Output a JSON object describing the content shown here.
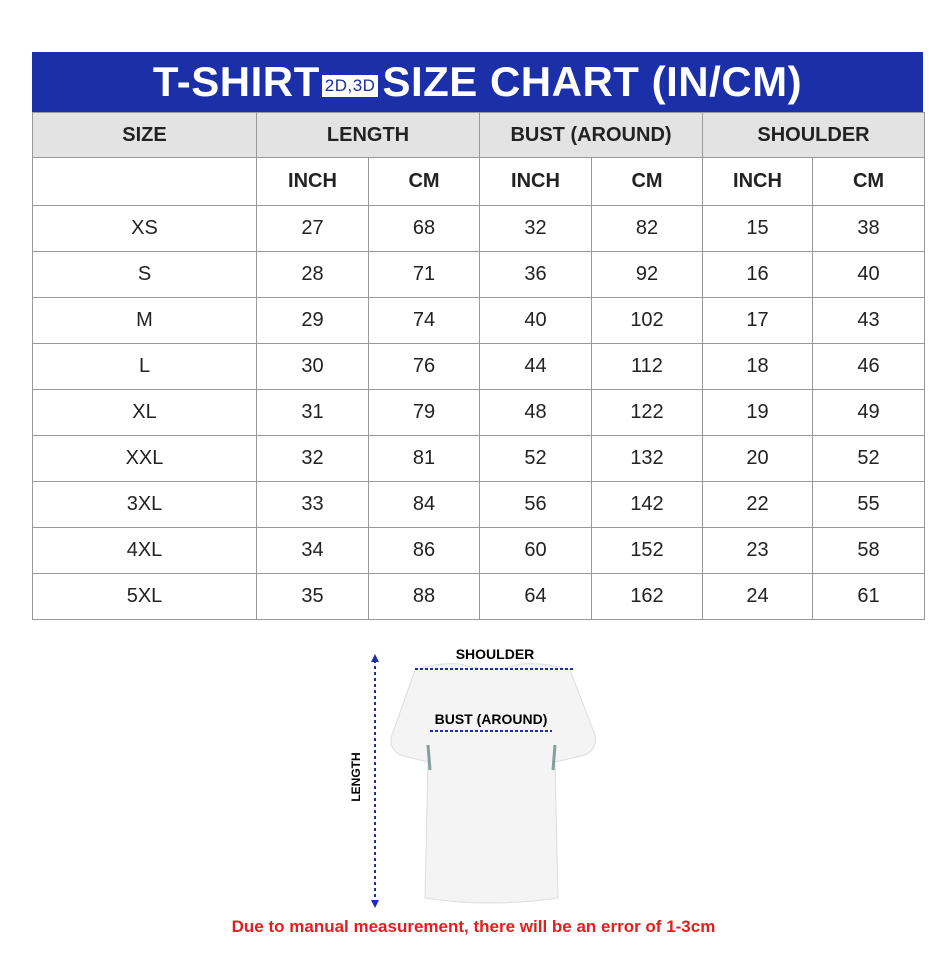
{
  "title": {
    "before": "T-SHIRT",
    "tag": "2D,3D",
    "after": "SIZE CHART (IN/CM)"
  },
  "headers": {
    "size": "SIZE",
    "length": "LENGTH",
    "bust": "BUST (AROUND)",
    "shoulder": "SHOULDER",
    "inch": "INCH",
    "cm": "CM"
  },
  "rows": [
    [
      "XS",
      "27",
      "68",
      "32",
      "82",
      "15",
      "38"
    ],
    [
      "S",
      "28",
      "71",
      "36",
      "92",
      "16",
      "40"
    ],
    [
      "M",
      "29",
      "74",
      "40",
      "102",
      "17",
      "43"
    ],
    [
      "L",
      "30",
      "76",
      "44",
      "112",
      "18",
      "46"
    ],
    [
      "XL",
      "31",
      "79",
      "48",
      "122",
      "19",
      "49"
    ],
    [
      "XXL",
      "32",
      "81",
      "52",
      "132",
      "20",
      "52"
    ],
    [
      "3XL",
      "33",
      "84",
      "56",
      "142",
      "22",
      "55"
    ],
    [
      "4XL",
      "34",
      "86",
      "60",
      "152",
      "23",
      "58"
    ],
    [
      "5XL",
      "35",
      "88",
      "64",
      "162",
      "24",
      "61"
    ]
  ],
  "diagram": {
    "shoulder": "SHOULDER",
    "bust": "BUST (AROUND)",
    "length": "LENGTH"
  },
  "note": "Due to manual measurement, there will be an error of 1-3cm",
  "colors": {
    "header_blue": "#1b2fa8",
    "note_red": "#e0201c"
  }
}
